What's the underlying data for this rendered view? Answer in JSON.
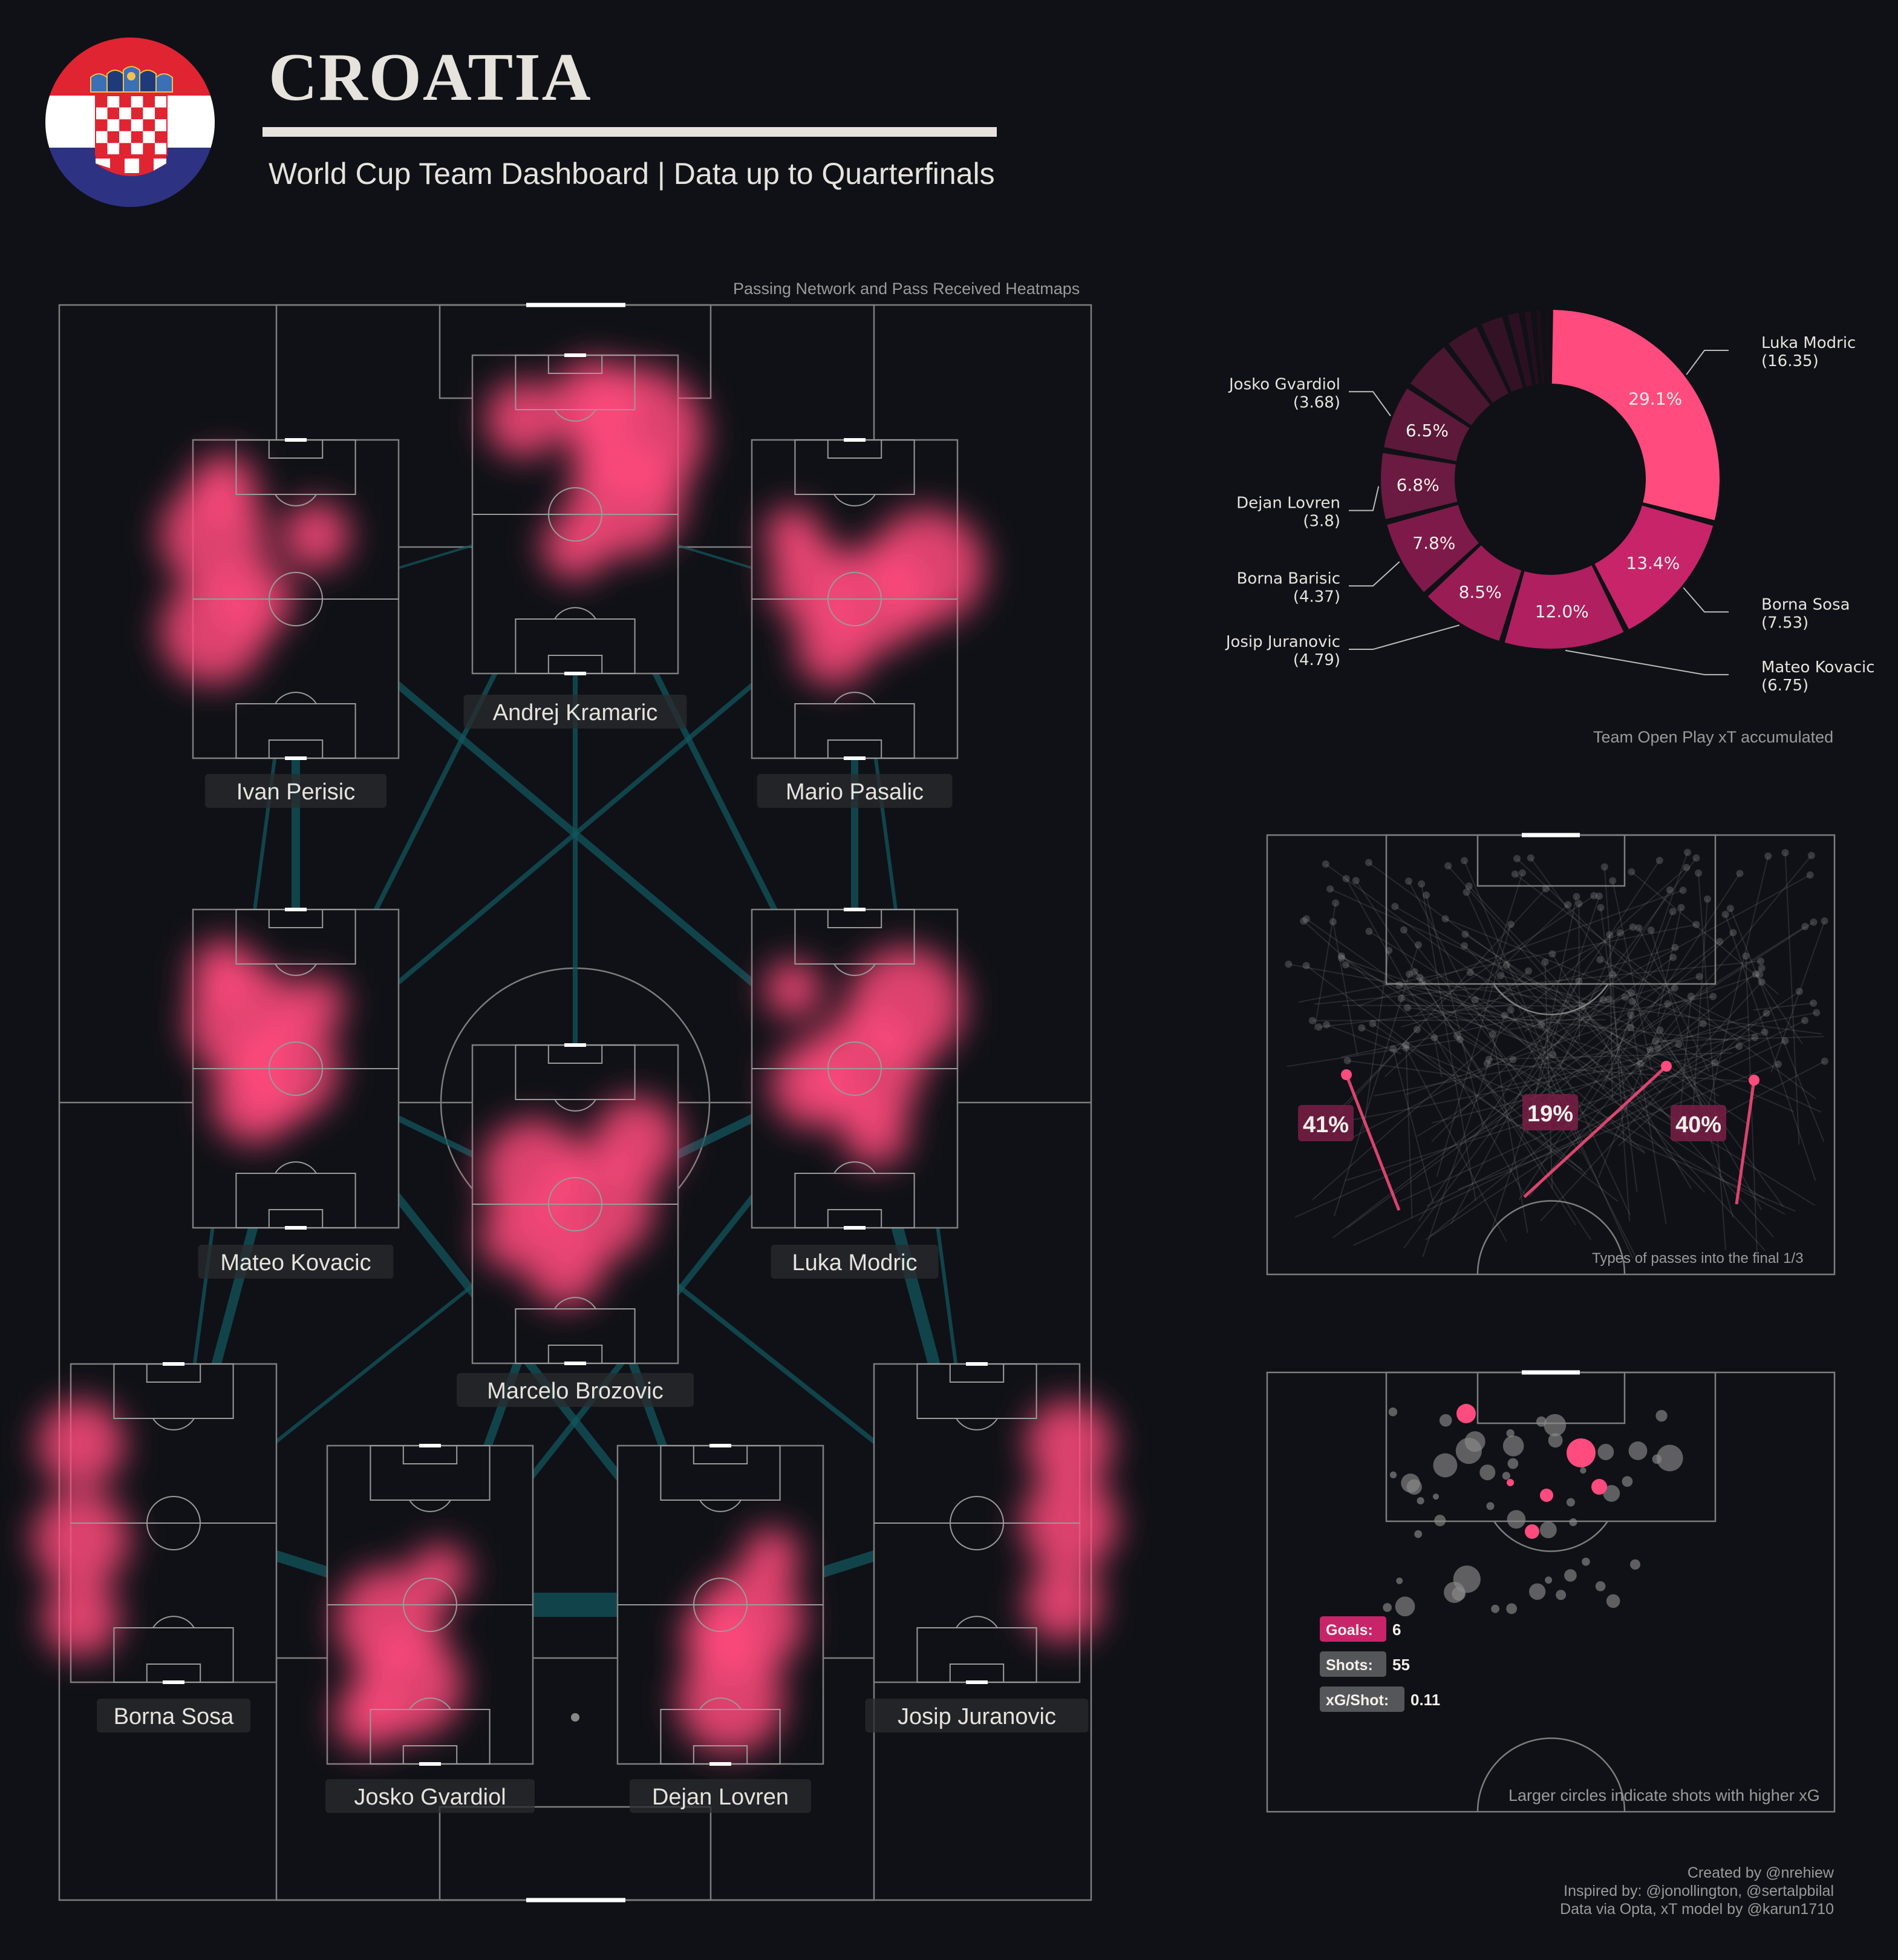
{
  "header": {
    "title": "CROATIA",
    "subtitle": "World Cup Team Dashboard | Data up to Quarterfinals"
  },
  "colors": {
    "background": "#0f1116",
    "accent": "#ff4b7d",
    "network": "#12555c",
    "line": "#7d7d7d",
    "text": "#e6e3dc"
  },
  "network_caption": "Passing Network and Pass Received Heatmaps",
  "players": [
    {
      "name": "Andrej Kramaric"
    },
    {
      "name": "Ivan Perisic"
    },
    {
      "name": "Mario Pasalic"
    },
    {
      "name": "Mateo Kovacic"
    },
    {
      "name": "Luka Modric"
    },
    {
      "name": "Marcelo Brozovic"
    },
    {
      "name": "Borna Sosa"
    },
    {
      "name": "Josip Juranovic"
    },
    {
      "name": "Josko Gvardiol"
    },
    {
      "name": "Dejan Lovren"
    }
  ],
  "chart_data": [
    {
      "type": "pie",
      "title": "Team Open Play xT accumulated",
      "slices": [
        {
          "label": "29.1%",
          "value": 29.1,
          "player": "Luka Modric",
          "xt": "(16.35)"
        },
        {
          "label": "13.4%",
          "value": 13.4,
          "player": "Borna Sosa",
          "xt": "(7.53)"
        },
        {
          "label": "12.0%",
          "value": 12.0,
          "player": "Mateo Kovacic",
          "xt": "(6.75)"
        },
        {
          "label": "8.5%",
          "value": 8.5,
          "player": "Josip Juranovic",
          "xt": "(4.79)"
        },
        {
          "label": "7.8%",
          "value": 7.8,
          "player": "Borna Barisic",
          "xt": "(4.37)"
        },
        {
          "label": "6.8%",
          "value": 6.8,
          "player": "Dejan Lovren",
          "xt": "(3.8)"
        },
        {
          "label": "6.5%",
          "value": 6.5,
          "player": "Josko Gvardiol",
          "xt": "(3.68)"
        },
        {
          "label": "",
          "value": 5.2
        },
        {
          "label": "",
          "value": 3.6
        },
        {
          "label": "",
          "value": 2.6
        },
        {
          "label": "",
          "value": 1.6
        },
        {
          "label": "",
          "value": 1.1
        },
        {
          "label": "",
          "value": 0.9
        },
        {
          "label": "",
          "value": 0.7
        }
      ]
    },
    {
      "type": "bar",
      "title": "Types of passes into the final 1/3",
      "categories": [
        "left",
        "centre",
        "right"
      ],
      "labels": [
        "41%",
        "19%",
        "40%"
      ],
      "values": [
        41,
        19,
        40
      ]
    },
    {
      "type": "scatter",
      "title": "Larger circles indicate shots with higher xG",
      "stats": [
        {
          "label": "Goals:",
          "value": "6"
        },
        {
          "label": "Shots:",
          "value": "55"
        },
        {
          "label": "xG/Shot:",
          "value": "0.11"
        }
      ],
      "goals": 6,
      "shots": 55,
      "xg_per_shot": 0.11
    }
  ],
  "credits": [
    "Created by @nrehiew",
    "Inspired by: @jonollington, @sertalpbilal",
    "Data via Opta, xT model by @karun1710"
  ]
}
